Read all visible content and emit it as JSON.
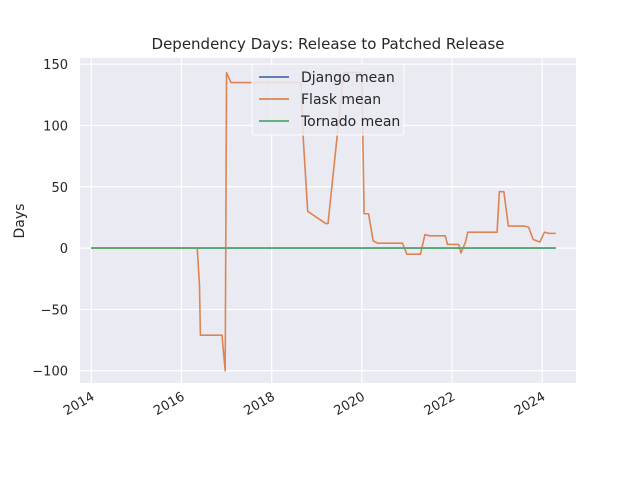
{
  "chart_data": {
    "type": "line",
    "title": "Dependency Days: Release to Patched Release",
    "xlabel": "",
    "ylabel": "Days",
    "xlim": [
      2013.75,
      2024.75
    ],
    "ylim": [
      -110,
      155
    ],
    "x_ticks": [
      2014,
      2016,
      2018,
      2020,
      2022,
      2024
    ],
    "x_tick_labels": [
      "2014",
      "2016",
      "2018",
      "2020",
      "2022",
      "2024"
    ],
    "y_ticks": [
      150,
      100,
      50,
      0,
      -50,
      -100
    ],
    "y_tick_labels": [
      "150",
      "100",
      "50",
      "0",
      "−50",
      "−100"
    ],
    "grid": true,
    "legend": "top-center",
    "background": "#eaeaf2",
    "series": [
      {
        "name": "Django mean",
        "color": "#4c72b0",
        "x": [
          2014.0,
          2024.3
        ],
        "y": [
          0,
          0
        ]
      },
      {
        "name": "Flask mean",
        "color": "#dd8452",
        "x": [
          2014.0,
          2016.35,
          2016.4,
          2016.42,
          2016.9,
          2016.92,
          2016.97,
          2017.0,
          2017.1,
          2018.65,
          2018.7,
          2018.8,
          2019.2,
          2019.25,
          2019.6,
          2020.0,
          2020.05,
          2020.15,
          2020.25,
          2020.35,
          2020.9,
          2021.0,
          2021.3,
          2021.4,
          2021.5,
          2021.85,
          2021.9,
          2022.1,
          2022.15,
          2022.2,
          2022.3,
          2022.35,
          2022.4,
          2023.0,
          2023.05,
          2023.15,
          2023.25,
          2023.6,
          2023.7,
          2023.8,
          2023.95,
          2024.05,
          2024.15,
          2024.3
        ],
        "y": [
          0,
          0,
          -30,
          -71,
          -71,
          -80,
          -100,
          143,
          135,
          135,
          90,
          30,
          20,
          20,
          143,
          143,
          28,
          28,
          6,
          4,
          4,
          -5,
          -5,
          11,
          10,
          10,
          3,
          3,
          3,
          -4,
          5,
          13,
          13,
          13,
          46,
          46,
          18,
          18,
          17,
          7,
          5,
          13,
          12,
          12
        ]
      },
      {
        "name": "Tornado mean",
        "color": "#55a868",
        "x": [
          2014.0,
          2024.3
        ],
        "y": [
          0,
          0
        ]
      }
    ]
  }
}
